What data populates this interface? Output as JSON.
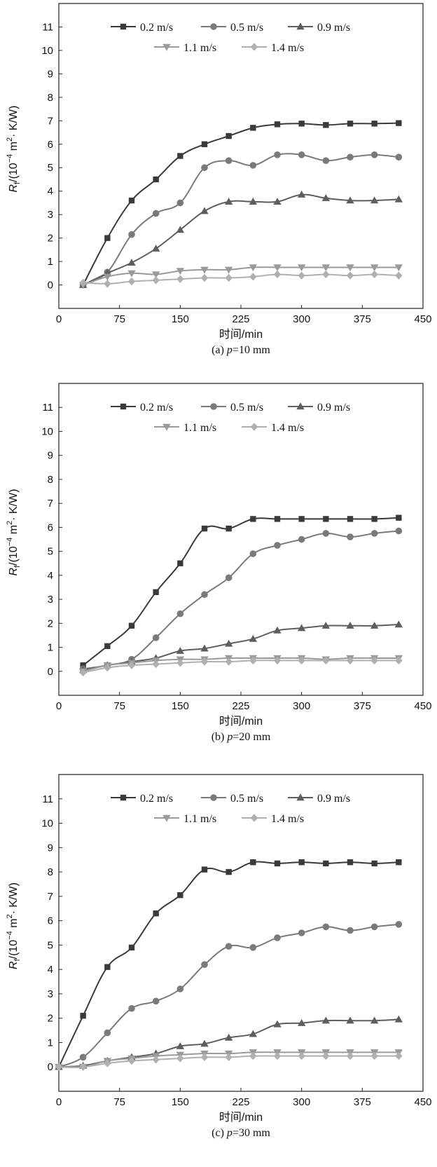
{
  "chart_data": [
    {
      "type": "line",
      "caption_prefix": "(a) ",
      "caption_p": "p",
      "caption_value": "=10 mm",
      "xlabel": "时间/min",
      "ylabel": {
        "sym": "R",
        "sub": "f",
        "unit_a": "/(10",
        "exp": "−4",
        "unit_b": " m",
        "exp2": "2",
        "unit_c": "· K/W)"
      },
      "xlim": [
        0,
        450
      ],
      "ylim": [
        -1,
        12
      ],
      "xticks": [
        "0",
        "75",
        "150",
        "225",
        "300",
        "375",
        "450"
      ],
      "yticks": [
        "0",
        "1",
        "2",
        "3",
        "4",
        "5",
        "6",
        "7",
        "8",
        "9",
        "10",
        "11"
      ],
      "legend_position": "top",
      "series": [
        {
          "name": "0.2 m/s",
          "marker": "square",
          "color": "#3a3a3a",
          "x": [
            30,
            60,
            90,
            120,
            150,
            180,
            210,
            240,
            270,
            300,
            330,
            360,
            390,
            420
          ],
          "values": [
            0.0,
            2.0,
            3.6,
            4.5,
            5.5,
            6.0,
            6.35,
            6.7,
            6.85,
            6.88,
            6.82,
            6.88,
            6.88,
            6.9
          ]
        },
        {
          "name": "0.5 m/s",
          "marker": "circle",
          "color": "#7a7a7a",
          "x": [
            30,
            60,
            90,
            120,
            150,
            180,
            210,
            240,
            270,
            300,
            330,
            360,
            390,
            420
          ],
          "values": [
            0.0,
            0.55,
            2.15,
            3.05,
            3.5,
            5.0,
            5.3,
            5.1,
            5.55,
            5.55,
            5.3,
            5.45,
            5.55,
            5.45
          ]
        },
        {
          "name": "0.9 m/s",
          "marker": "triangle-up",
          "color": "#5e5e5e",
          "x": [
            30,
            60,
            90,
            120,
            150,
            180,
            210,
            240,
            270,
            300,
            330,
            360,
            390,
            420
          ],
          "values": [
            0.0,
            0.5,
            0.95,
            1.55,
            2.35,
            3.15,
            3.55,
            3.55,
            3.55,
            3.85,
            3.7,
            3.6,
            3.6,
            3.65
          ]
        },
        {
          "name": "1.1 m/s",
          "marker": "triangle-down",
          "color": "#9a9a9a",
          "x": [
            30,
            60,
            90,
            120,
            150,
            180,
            210,
            240,
            270,
            300,
            330,
            360,
            390,
            420
          ],
          "values": [
            0.0,
            0.35,
            0.5,
            0.45,
            0.6,
            0.65,
            0.65,
            0.75,
            0.75,
            0.75,
            0.75,
            0.75,
            0.75,
            0.75
          ]
        },
        {
          "name": "1.4 m/s",
          "marker": "diamond",
          "color": "#b0b0b0",
          "x": [
            30,
            60,
            90,
            120,
            150,
            180,
            210,
            240,
            270,
            300,
            330,
            360,
            390,
            420
          ],
          "values": [
            0.1,
            0.05,
            0.15,
            0.2,
            0.25,
            0.3,
            0.3,
            0.35,
            0.45,
            0.4,
            0.45,
            0.4,
            0.45,
            0.4
          ]
        }
      ]
    },
    {
      "type": "line",
      "caption_prefix": "(b) ",
      "caption_p": "p",
      "caption_value": "=20 mm",
      "xlabel": "时间/min",
      "ylabel": {
        "sym": "R",
        "sub": "f",
        "unit_a": "/(10",
        "exp": "−4",
        "unit_b": " m",
        "exp2": "2",
        "unit_c": "· K/W)"
      },
      "xlim": [
        0,
        450
      ],
      "ylim": [
        -1,
        12
      ],
      "xticks": [
        "0",
        "75",
        "150",
        "225",
        "300",
        "375",
        "450"
      ],
      "yticks": [
        "0",
        "1",
        "2",
        "3",
        "4",
        "5",
        "6",
        "7",
        "8",
        "9",
        "10",
        "11"
      ],
      "legend_position": "top",
      "series": [
        {
          "name": "0.2 m/s",
          "marker": "square",
          "color": "#3a3a3a",
          "x": [
            30,
            60,
            90,
            120,
            150,
            180,
            210,
            240,
            270,
            300,
            330,
            360,
            390,
            420
          ],
          "values": [
            0.25,
            1.05,
            1.9,
            3.3,
            4.5,
            5.95,
            5.95,
            6.35,
            6.35,
            6.35,
            6.35,
            6.35,
            6.35,
            6.4
          ]
        },
        {
          "name": "0.5 m/s",
          "marker": "circle",
          "color": "#7a7a7a",
          "x": [
            30,
            60,
            90,
            120,
            150,
            180,
            210,
            240,
            270,
            300,
            330,
            360,
            390,
            420
          ],
          "values": [
            0.1,
            0.25,
            0.5,
            1.4,
            2.4,
            3.2,
            3.9,
            4.9,
            5.25,
            5.5,
            5.75,
            5.6,
            5.75,
            5.85
          ]
        },
        {
          "name": "0.9 m/s",
          "marker": "triangle-up",
          "color": "#5e5e5e",
          "x": [
            30,
            60,
            90,
            120,
            150,
            180,
            210,
            240,
            270,
            300,
            330,
            360,
            390,
            420
          ],
          "values": [
            0.05,
            0.25,
            0.4,
            0.55,
            0.85,
            0.95,
            1.15,
            1.35,
            1.7,
            1.8,
            1.9,
            1.9,
            1.9,
            1.95
          ]
        },
        {
          "name": "1.1 m/s",
          "marker": "triangle-down",
          "color": "#9a9a9a",
          "x": [
            30,
            60,
            90,
            120,
            150,
            180,
            210,
            240,
            270,
            300,
            330,
            360,
            390,
            420
          ],
          "values": [
            0.0,
            0.25,
            0.35,
            0.45,
            0.5,
            0.5,
            0.55,
            0.55,
            0.55,
            0.55,
            0.5,
            0.55,
            0.55,
            0.55
          ]
        },
        {
          "name": "1.4 m/s",
          "marker": "diamond",
          "color": "#b0b0b0",
          "x": [
            30,
            60,
            90,
            120,
            150,
            180,
            210,
            240,
            270,
            300,
            330,
            360,
            390,
            420
          ],
          "values": [
            -0.05,
            0.15,
            0.25,
            0.3,
            0.35,
            0.4,
            0.4,
            0.45,
            0.45,
            0.45,
            0.45,
            0.45,
            0.45,
            0.45
          ]
        }
      ]
    },
    {
      "type": "line",
      "caption_prefix": "(c) ",
      "caption_p": "p",
      "caption_value": "=30 mm",
      "xlabel": "时间/min",
      "ylabel": {
        "sym": "R",
        "sub": "f",
        "unit_a": "/(10",
        "exp": "−4",
        "unit_b": " m",
        "exp2": "2",
        "unit_c": "· K/W)"
      },
      "xlim": [
        0,
        450
      ],
      "ylim": [
        -1,
        12
      ],
      "xticks": [
        "0",
        "75",
        "150",
        "225",
        "300",
        "375",
        "450"
      ],
      "yticks": [
        "0",
        "1",
        "2",
        "3",
        "4",
        "5",
        "6",
        "7",
        "8",
        "9",
        "10",
        "11"
      ],
      "legend_position": "top",
      "series": [
        {
          "name": "0.2 m/s",
          "marker": "square",
          "color": "#3a3a3a",
          "x": [
            0,
            30,
            60,
            90,
            120,
            150,
            180,
            210,
            240,
            270,
            300,
            330,
            360,
            390,
            420
          ],
          "values": [
            0.0,
            2.1,
            4.1,
            4.9,
            6.3,
            7.05,
            8.1,
            8.0,
            8.4,
            8.35,
            8.4,
            8.35,
            8.4,
            8.35,
            8.4
          ]
        },
        {
          "name": "0.5 m/s",
          "marker": "circle",
          "color": "#7a7a7a",
          "x": [
            0,
            30,
            60,
            90,
            120,
            150,
            180,
            210,
            240,
            270,
            300,
            330,
            360,
            390,
            420
          ],
          "values": [
            0.0,
            0.4,
            1.4,
            2.4,
            2.7,
            3.2,
            4.2,
            4.95,
            4.9,
            5.3,
            5.5,
            5.75,
            5.6,
            5.75,
            5.85
          ]
        },
        {
          "name": "0.9 m/s",
          "marker": "triangle-up",
          "color": "#5e5e5e",
          "x": [
            0,
            30,
            60,
            90,
            120,
            150,
            180,
            210,
            240,
            270,
            300,
            330,
            360,
            390,
            420
          ],
          "values": [
            0.0,
            0.05,
            0.25,
            0.4,
            0.55,
            0.85,
            0.95,
            1.2,
            1.35,
            1.75,
            1.8,
            1.9,
            1.9,
            1.9,
            1.95
          ]
        },
        {
          "name": "1.1 m/s",
          "marker": "triangle-down",
          "color": "#9a9a9a",
          "x": [
            0,
            30,
            60,
            90,
            120,
            150,
            180,
            210,
            240,
            270,
            300,
            330,
            360,
            390,
            420
          ],
          "values": [
            0.0,
            0.0,
            0.25,
            0.35,
            0.45,
            0.5,
            0.55,
            0.55,
            0.6,
            0.6,
            0.6,
            0.6,
            0.6,
            0.6,
            0.6
          ]
        },
        {
          "name": "1.4 m/s",
          "marker": "diamond",
          "color": "#b0b0b0",
          "x": [
            0,
            30,
            60,
            90,
            120,
            150,
            180,
            210,
            240,
            270,
            300,
            330,
            360,
            390,
            420
          ],
          "values": [
            0.0,
            0.0,
            0.15,
            0.25,
            0.3,
            0.35,
            0.4,
            0.4,
            0.45,
            0.45,
            0.45,
            0.45,
            0.45,
            0.45,
            0.45
          ]
        }
      ]
    }
  ]
}
